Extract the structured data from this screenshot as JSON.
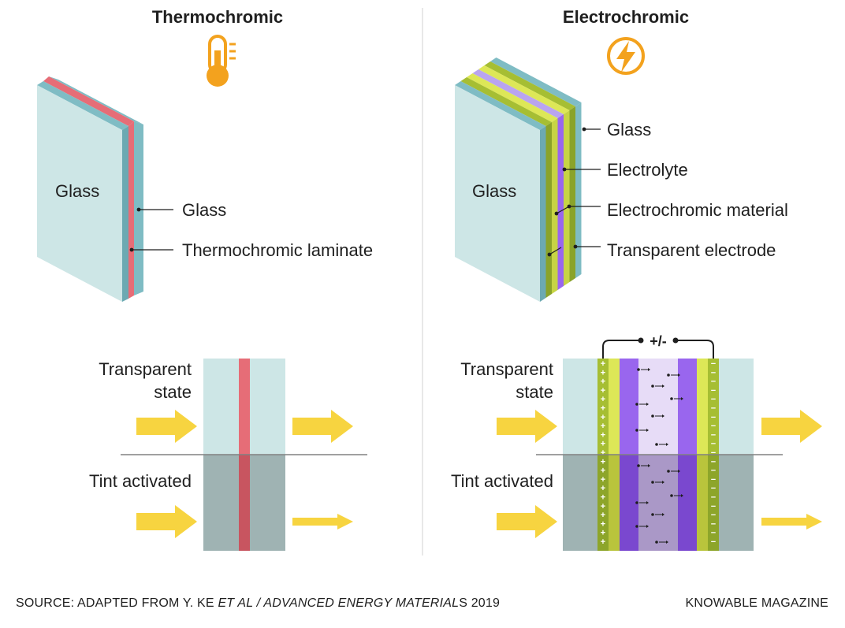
{
  "thermochromic": {
    "title": "Thermochromic",
    "icon": "thermometer-icon",
    "glass_face_label": "Glass",
    "layer_labels": [
      "Glass",
      "Thermochromic laminate"
    ],
    "states": {
      "transparent_line1": "Transparent",
      "transparent_line2": "state",
      "tinted": "Tint activated"
    }
  },
  "electrochromic": {
    "title": "Electrochromic",
    "icon": "lightning-bolt-icon",
    "glass_face_label": "Glass",
    "layer_labels": [
      "Glass",
      "Electrolyte",
      "Electrochromic material",
      "Transparent electrode"
    ],
    "voltage_label": "+/-",
    "states": {
      "transparent_line1": "Transparent",
      "transparent_line2": "state",
      "tinted": "Tint activated"
    }
  },
  "footer": {
    "source_prefix": "SOURCE: ADAPTED FROM Y. KE ",
    "source_italic": "ET AL / ADVANCED ENERGY MATERIAL",
    "source_suffix": "S 2019",
    "credit": "KNOWABLE MAGAZINE"
  },
  "colors": {
    "glass": "#cde6e6",
    "glass_edge": "#7fbcc4",
    "laminate": "#e66d77",
    "tint_glass": "#9fb3b3",
    "arrow": "#f7d440",
    "icon": "#f3a21e",
    "green_layer": "#a6be33",
    "yellow_layer": "#dde757",
    "purple_layer": "#9966ee",
    "electrolyte": "#e7dcf7"
  }
}
